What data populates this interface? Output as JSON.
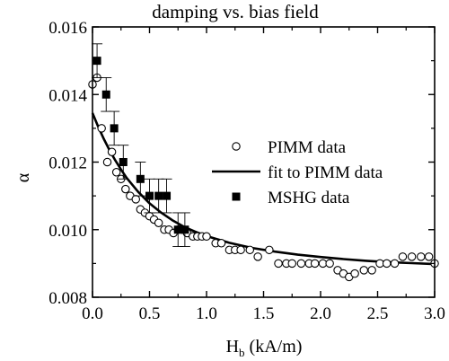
{
  "chart_data": {
    "type": "scatter",
    "title": "damping vs. bias field",
    "xlabel_main": "H",
    "xlabel_sub": "b",
    "xlabel_unit": " (kA/m)",
    "ylabel": "α",
    "xlim": [
      0.0,
      3.0
    ],
    "ylim": [
      0.008,
      0.016
    ],
    "x_ticks": [
      0.0,
      0.5,
      1.0,
      1.5,
      2.0,
      2.5,
      3.0
    ],
    "x_tick_labels": [
      "0.0",
      "0.5",
      "1.0",
      "1.5",
      "2.0",
      "2.5",
      "3.0"
    ],
    "y_ticks": [
      0.008,
      0.01,
      0.012,
      0.014,
      0.016
    ],
    "y_tick_labels": [
      "0.008",
      "0.010",
      "0.012",
      "0.014",
      "0.016"
    ],
    "legend_position": "right",
    "series": [
      {
        "name": "PIMM data",
        "marker": "open-circle",
        "color": "#000000",
        "x": [
          0.0,
          0.04,
          0.08,
          0.13,
          0.17,
          0.21,
          0.25,
          0.29,
          0.33,
          0.38,
          0.42,
          0.46,
          0.5,
          0.54,
          0.58,
          0.63,
          0.67,
          0.71,
          0.75,
          0.79,
          0.83,
          0.88,
          0.92,
          0.96,
          1.0,
          1.08,
          1.13,
          1.2,
          1.25,
          1.3,
          1.38,
          1.45,
          1.55,
          1.63,
          1.7,
          1.75,
          1.83,
          1.9,
          1.95,
          2.02,
          2.08,
          2.15,
          2.2,
          2.25,
          2.3,
          2.38,
          2.45,
          2.52,
          2.58,
          2.65,
          2.72,
          2.8,
          2.88,
          2.95,
          3.0
        ],
        "y": [
          0.0143,
          0.0145,
          0.013,
          0.012,
          0.0123,
          0.0117,
          0.0115,
          0.0112,
          0.011,
          0.0109,
          0.0106,
          0.0105,
          0.0104,
          0.0103,
          0.0102,
          0.01,
          0.01,
          0.0099,
          0.01,
          0.01,
          0.0099,
          0.0098,
          0.0098,
          0.0098,
          0.0098,
          0.0096,
          0.0096,
          0.0094,
          0.0094,
          0.0094,
          0.0094,
          0.0092,
          0.0094,
          0.009,
          0.009,
          0.009,
          0.009,
          0.009,
          0.009,
          0.009,
          0.009,
          0.0088,
          0.0087,
          0.0086,
          0.0087,
          0.0088,
          0.0088,
          0.009,
          0.009,
          0.009,
          0.0092,
          0.0092,
          0.0092,
          0.0092,
          0.009
        ]
      },
      {
        "name": "fit to PIMM data",
        "marker": "line",
        "color": "#000000",
        "x": [
          0.0,
          0.05,
          0.1,
          0.15,
          0.2,
          0.25,
          0.3,
          0.4,
          0.5,
          0.6,
          0.7,
          0.8,
          0.9,
          1.0,
          1.2,
          1.4,
          1.6,
          1.8,
          2.0,
          2.2,
          2.4,
          2.6,
          2.8,
          3.0
        ],
        "y": [
          0.01345,
          0.01305,
          0.01268,
          0.01235,
          0.01205,
          0.01178,
          0.01153,
          0.01112,
          0.01078,
          0.01051,
          0.01028,
          0.01009,
          0.00994,
          0.00981,
          0.00961,
          0.00946,
          0.00935,
          0.00926,
          0.00919,
          0.00913,
          0.00908,
          0.00904,
          0.00901,
          0.00898
        ]
      },
      {
        "name": "MSHG data",
        "marker": "filled-square",
        "color": "#000000",
        "x": [
          0.04,
          0.12,
          0.19,
          0.27,
          0.42,
          0.5,
          0.58,
          0.65,
          0.75,
          0.81
        ],
        "y": [
          0.015,
          0.014,
          0.013,
          0.012,
          0.0115,
          0.011,
          0.011,
          0.011,
          0.01,
          0.01
        ],
        "err": [
          0.0005,
          0.0005,
          0.0005,
          0.0005,
          0.0005,
          0.0005,
          0.0005,
          0.0005,
          0.0005,
          0.0005
        ]
      }
    ]
  }
}
